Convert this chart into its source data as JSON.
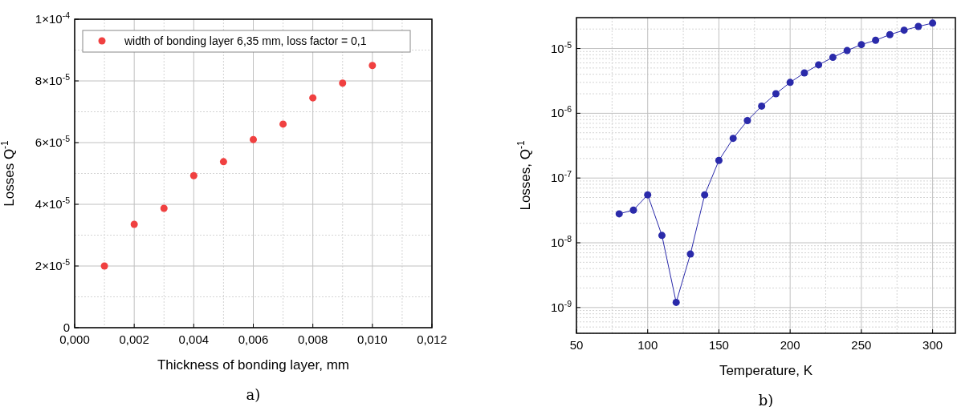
{
  "chart_data": [
    {
      "type": "scatter",
      "xlabel": "Thickness of bonding layer, mm",
      "ylabel": "Losses Q$^{-1}$",
      "annotations": [
        "a)"
      ],
      "x": [
        0.001,
        0.002,
        0.003,
        0.004,
        0.005,
        0.006,
        0.007,
        0.008,
        0.009,
        0.01
      ],
      "series": [
        {
          "name": "width of bonding layer 6,35 mm, loss factor = 0,1",
          "color": "#f04040",
          "values": [
            2e-05,
            3.35e-05,
            3.87e-05,
            4.93e-05,
            5.38e-05,
            6.1e-05,
            6.6e-05,
            7.45e-05,
            7.93e-05,
            8.5e-05
          ]
        }
      ],
      "xlim": [
        0,
        0.012
      ],
      "xticks": [
        {
          "value": 0,
          "label": "0,000"
        },
        {
          "value": 0.002,
          "label": "0,002"
        },
        {
          "value": 0.004,
          "label": "0,004"
        },
        {
          "value": 0.006,
          "label": "0,006"
        },
        {
          "value": 0.008,
          "label": "0,008"
        },
        {
          "value": 0.01,
          "label": "0,010"
        },
        {
          "value": 0.012,
          "label": "0,012"
        }
      ],
      "ylim": [
        0,
        0.0001
      ],
      "yticks": [
        0,
        {
          "value": 2e-05,
          "label": "2×10$^{-5}$"
        },
        {
          "value": 4e-05,
          "label": "4×10$^{-5}$"
        },
        {
          "value": 6e-05,
          "label": "6×10$^{-5}$"
        },
        {
          "value": 8e-05,
          "label": "8×10$^{-5}$"
        },
        {
          "value": 0.0001,
          "label": "1×10$^{-4}$"
        }
      ],
      "grid": true,
      "legend": "top left",
      "marker": "circle"
    },
    {
      "type": "line",
      "xlabel": "Temperature, K",
      "ylabel": "Losses, Q$^{-1}$",
      "annotations": [
        "b)"
      ],
      "x": [
        80,
        90,
        100,
        110,
        120,
        130,
        140,
        150,
        160,
        170,
        180,
        190,
        200,
        210,
        220,
        230,
        240,
        250,
        260,
        270,
        280,
        290,
        300
      ],
      "series": [
        {
          "color": "#2a2aaa",
          "values": [
            2.8e-08,
            3.2e-08,
            5.5e-08,
            1.3e-08,
            1.2e-09,
            6.7e-09,
            5.5e-08,
            1.87e-07,
            4.1e-07,
            7.7e-07,
            1.29e-06,
            2e-06,
            3e-06,
            4.2e-06,
            5.6e-06,
            7.3e-06,
            9.3e-06,
            1.15e-05,
            1.34e-05,
            1.64e-05,
            1.92e-05,
            2.19e-05,
            2.47e-05
          ]
        }
      ],
      "xlim": [
        50,
        316
      ],
      "xticks": [
        50,
        100,
        150,
        200,
        250,
        300
      ],
      "ylim": [
        4e-10,
        3e-05
      ],
      "yticks": [
        {
          "value": 1e-09,
          "label": "10$^{-9}$"
        },
        {
          "value": 1e-08,
          "label": "10$^{-8}$"
        },
        {
          "value": 1e-07,
          "label": "10$^{-7}$"
        },
        {
          "value": 1e-06,
          "label": "10$^{-6}$"
        },
        {
          "value": 1e-05,
          "label": "10$^{-5}$"
        }
      ],
      "log": true,
      "grid": true,
      "marker": "circle",
      "line_style": "solid"
    }
  ]
}
